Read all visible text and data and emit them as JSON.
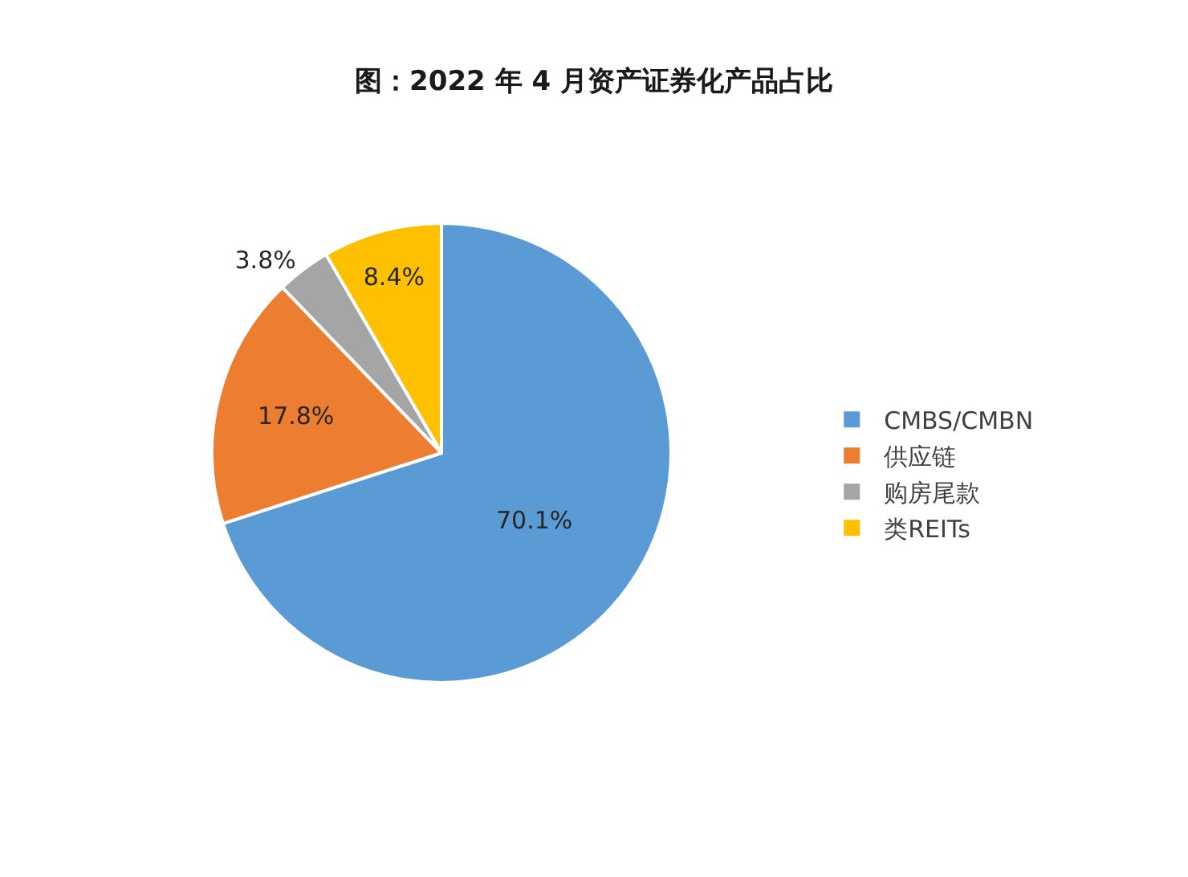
{
  "chart_data": {
    "type": "pie",
    "title": "图：2022 年 4 月资产证券化产品占比",
    "categories": [
      "CMBS/CMBN",
      "供应链",
      "购房尾款",
      "类REITs"
    ],
    "values": [
      70.1,
      17.8,
      3.8,
      8.4
    ],
    "colors": [
      "#5b9bd5",
      "#ed7d31",
      "#a5a5a5",
      "#ffc000"
    ],
    "value_labels": [
      "70.1%",
      "17.8%",
      "3.8%",
      "8.4%"
    ],
    "legend": "right"
  }
}
